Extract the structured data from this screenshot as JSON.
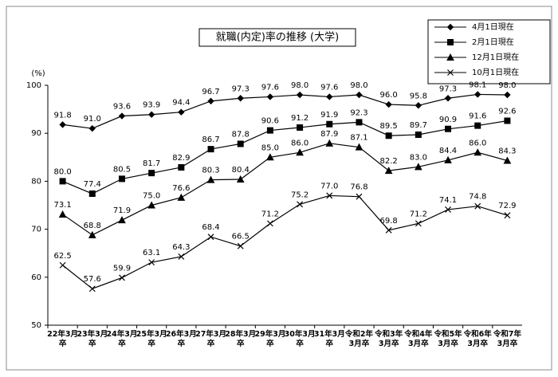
{
  "chart_data": {
    "type": "line",
    "title": "就職(内定)率の推移 (大学)",
    "y_unit": "(%)",
    "categories": [
      "22年3月\n卒",
      "23年3月\n卒",
      "24年3月\n卒",
      "25年3月\n卒",
      "26年3月\n卒",
      "27年3月\n卒",
      "28年3月\n卒",
      "29年3月\n卒",
      "30年3月\n卒",
      "31年3月\n卒",
      "令和2年\n3月卒",
      "令和3年\n3月卒",
      "令和4年\n3月卒",
      "令和5年\n3月卒",
      "令和6年\n3月卒",
      "令和7年\n3月卒"
    ],
    "ylim": [
      50,
      100
    ],
    "yticks": [
      50,
      60,
      70,
      80,
      90,
      100
    ],
    "grid": false,
    "legend": "top-right",
    "series": [
      {
        "name": "4月1日現在",
        "color": "#000000",
        "marker": "diamond",
        "values": [
          91.8,
          91.0,
          93.6,
          93.9,
          94.4,
          96.7,
          97.3,
          97.6,
          98.0,
          97.6,
          98.0,
          96.0,
          95.8,
          97.3,
          98.1,
          98.0
        ],
        "value_labels": [
          "91.8",
          "91.0",
          "93.6",
          "93.9",
          "94.4",
          "96.7",
          "97.3",
          "97.6",
          "98.0",
          "97.6",
          "98.0",
          "96.0",
          "95.8",
          "97.3",
          "98.1",
          "98.0"
        ]
      },
      {
        "name": "2月1日現在",
        "color": "#000000",
        "marker": "square",
        "values": [
          80.0,
          77.4,
          80.5,
          81.7,
          82.9,
          86.7,
          87.8,
          90.6,
          91.2,
          91.9,
          92.3,
          89.5,
          89.7,
          90.9,
          91.6,
          92.6
        ],
        "value_labels": [
          "80.0",
          "77.4",
          "80.5",
          "81.7",
          "82.9",
          "86.7",
          "87.8",
          "90.6",
          "91.2",
          "91.9",
          "92.3",
          "89.5",
          "89.7",
          "90.9",
          "91.6",
          "92.6"
        ]
      },
      {
        "name": "12月1日現在",
        "color": "#000000",
        "marker": "triangle",
        "values": [
          73.1,
          68.8,
          71.9,
          75.0,
          76.6,
          80.3,
          80.4,
          85.0,
          86.0,
          87.9,
          87.1,
          82.2,
          83.0,
          84.4,
          86.0,
          84.3
        ],
        "value_labels": [
          "73.1",
          "68.8",
          "71.9",
          "75.0",
          "76.6",
          "80.3",
          "80.4",
          "85.0",
          "86.0",
          "87.9",
          "87.1",
          "82.2",
          "83.0",
          "84.4",
          "86.0",
          "84.3"
        ]
      },
      {
        "name": "10月1日現在",
        "color": "#000000",
        "marker": "x",
        "values": [
          62.5,
          57.6,
          59.9,
          63.1,
          64.3,
          68.4,
          66.5,
          71.2,
          75.2,
          77.0,
          76.8,
          69.8,
          71.2,
          74.1,
          74.8,
          72.9
        ],
        "value_labels": [
          "62.5",
          "57.6",
          "59.9",
          "63.1",
          "64.3",
          "68.4",
          "66.5",
          "71.2",
          "75.2",
          "77.0",
          "76.8",
          "69.8",
          "71.2",
          "74.1",
          "74.8",
          "72.9"
        ]
      }
    ]
  }
}
